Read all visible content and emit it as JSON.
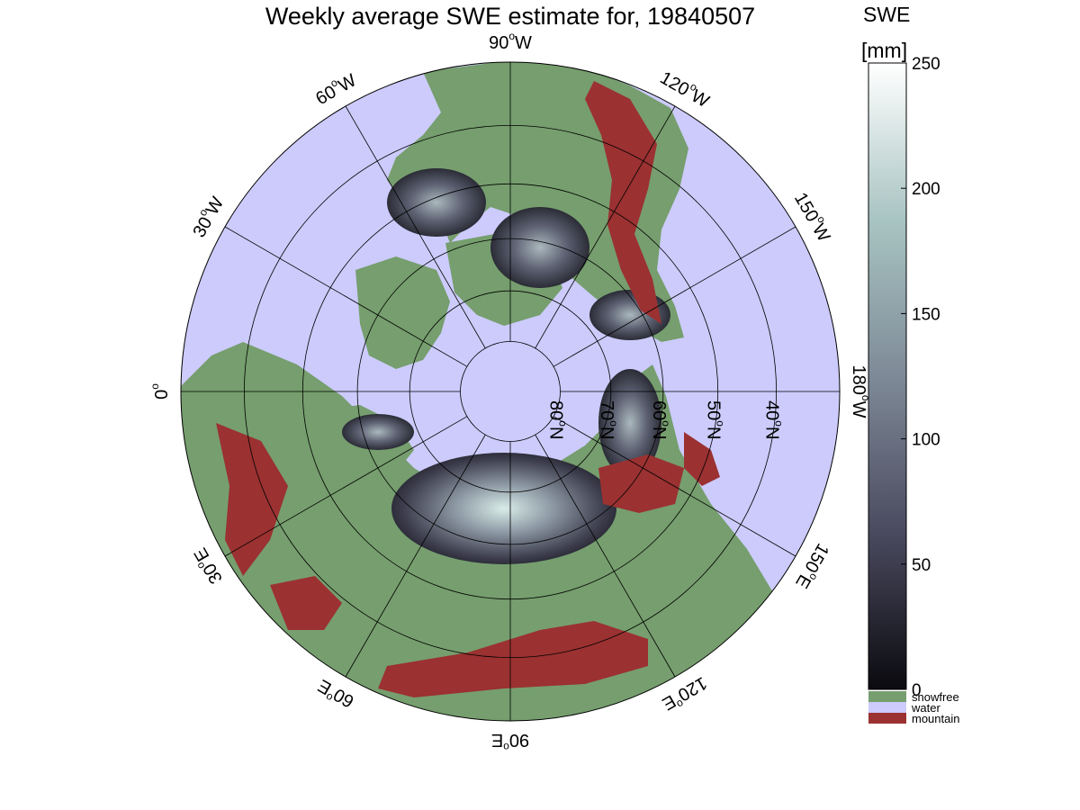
{
  "title": "Weekly average SWE estimate for, 19840507",
  "projection": "north-polar-stereographic",
  "longitude_labels": [
    {
      "deg": 90,
      "text": "90°W",
      "num": "90",
      "sup": "o",
      "dir": "W"
    },
    {
      "deg": 120,
      "text": "120°W",
      "num": "120",
      "sup": "o",
      "dir": "W"
    },
    {
      "deg": 150,
      "text": "150°W",
      "num": "150",
      "sup": "o",
      "dir": "W"
    },
    {
      "deg": 180,
      "text": "180°W",
      "num": "180",
      "sup": "o",
      "dir": "W"
    },
    {
      "deg": 210,
      "text": "150°E",
      "num": "150",
      "sup": "o",
      "dir": "E"
    },
    {
      "deg": 240,
      "text": "120°E",
      "num": "120",
      "sup": "o",
      "dir": "E"
    },
    {
      "deg": 270,
      "text": "90°E",
      "num": "90",
      "sup": "o",
      "dir": "E"
    },
    {
      "deg": 300,
      "text": "60°E",
      "num": "60",
      "sup": "o",
      "dir": "E"
    },
    {
      "deg": 330,
      "text": "30°E",
      "num": "30",
      "sup": "o",
      "dir": "E"
    },
    {
      "deg": 0,
      "text": "0°",
      "num": "0",
      "sup": "o",
      "dir": ""
    },
    {
      "deg": 30,
      "text": "30°W",
      "num": "30",
      "sup": "o",
      "dir": "W"
    },
    {
      "deg": 60,
      "text": "60°W",
      "num": "60",
      "sup": "o",
      "dir": "W"
    }
  ],
  "latitude_labels": [
    {
      "lat": 80,
      "text": "80°N",
      "num": "80",
      "sup": "o",
      "dir": "N"
    },
    {
      "lat": 70,
      "text": "70°N",
      "num": "70",
      "sup": "o",
      "dir": "N"
    },
    {
      "lat": 60,
      "text": "60°N",
      "num": "60",
      "sup": "o",
      "dir": "N"
    },
    {
      "lat": 50,
      "text": "50°N",
      "num": "50",
      "sup": "o",
      "dir": "N"
    },
    {
      "lat": 40,
      "text": "40°N",
      "num": "40",
      "sup": "o",
      "dir": "N"
    }
  ],
  "colorbar": {
    "label_line1": "SWE",
    "label_line2": "[mm]",
    "min": 0,
    "max": 250,
    "ticks": [
      "0",
      "50",
      "100",
      "150",
      "200",
      "250"
    ],
    "tick_values": [
      0,
      50,
      100,
      150,
      200,
      250
    ],
    "colors": [
      "#0a0a0f",
      "#4a4a5f",
      "#7e8a97",
      "#a8c4c2",
      "#ffffff"
    ]
  },
  "legend": [
    {
      "label": "snowfree",
      "color": "#769e6e"
    },
    {
      "label": "water",
      "color": "#cccbfc"
    },
    {
      "label": "mountain",
      "color": "#9b3131"
    }
  ]
}
